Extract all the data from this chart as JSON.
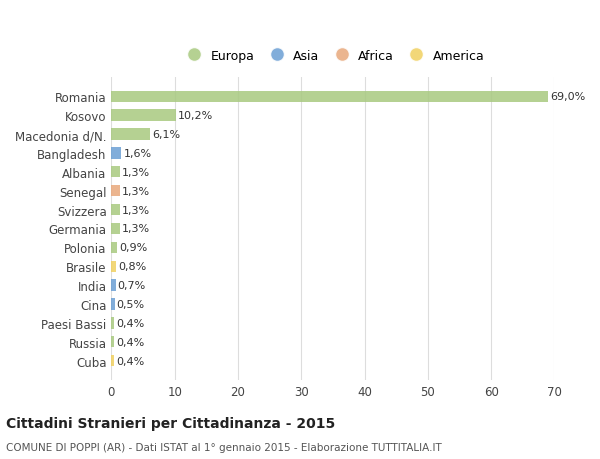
{
  "categories": [
    "Romania",
    "Kosovo",
    "Macedonia d/N.",
    "Bangladesh",
    "Albania",
    "Senegal",
    "Svizzera",
    "Germania",
    "Polonia",
    "Brasile",
    "India",
    "Cina",
    "Paesi Bassi",
    "Russia",
    "Cuba"
  ],
  "values": [
    69.0,
    10.2,
    6.1,
    1.6,
    1.3,
    1.3,
    1.3,
    1.3,
    0.9,
    0.8,
    0.7,
    0.5,
    0.4,
    0.4,
    0.4
  ],
  "labels": [
    "69,0%",
    "10,2%",
    "6,1%",
    "1,6%",
    "1,3%",
    "1,3%",
    "1,3%",
    "1,3%",
    "0,9%",
    "0,8%",
    "0,7%",
    "0,5%",
    "0,4%",
    "0,4%",
    "0,4%"
  ],
  "colors": [
    "#a8c97f",
    "#a8c97f",
    "#a8c97f",
    "#6b9fd4",
    "#a8c97f",
    "#e8a87c",
    "#a8c97f",
    "#a8c97f",
    "#a8c97f",
    "#f0d060",
    "#6b9fd4",
    "#6b9fd4",
    "#a8c97f",
    "#a8c97f",
    "#f0d060"
  ],
  "legend_labels": [
    "Europa",
    "Asia",
    "Africa",
    "America"
  ],
  "legend_colors": [
    "#a8c97f",
    "#6b9fd4",
    "#e8a87c",
    "#f0d060"
  ],
  "title": "Cittadini Stranieri per Cittadinanza - 2015",
  "subtitle": "COMUNE DI POPPI (AR) - Dati ISTAT al 1° gennaio 2015 - Elaborazione TUTTITALIA.IT",
  "xlim": [
    0,
    70
  ],
  "xticks": [
    0,
    10,
    20,
    30,
    40,
    50,
    60,
    70
  ],
  "background_color": "#ffffff",
  "grid_color": "#dddddd",
  "bar_height": 0.6
}
